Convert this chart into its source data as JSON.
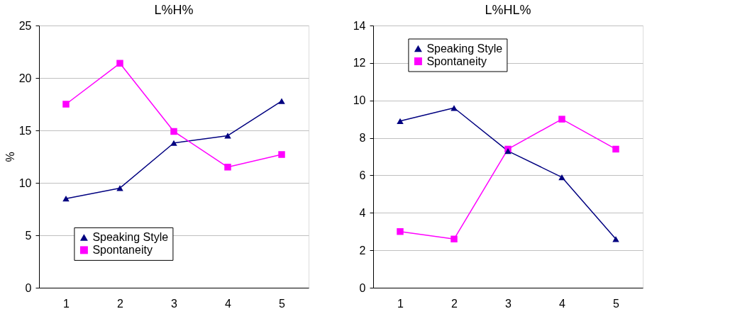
{
  "chart_data": [
    {
      "type": "line",
      "title": "L%H%",
      "ylabel": "%",
      "categories": [
        "1",
        "2",
        "3",
        "4",
        "5"
      ],
      "ylim": [
        0,
        25
      ],
      "yticks": [
        0,
        5,
        10,
        15,
        20,
        25
      ],
      "grid": "y",
      "legend": "bottom",
      "series": [
        {
          "name": "Speaking Style",
          "color": "#000080",
          "marker": "triangle",
          "values": [
            8.5,
            9.5,
            13.8,
            14.5,
            17.8
          ]
        },
        {
          "name": "Spontaneity",
          "color": "#ff00ff",
          "marker": "square",
          "values": [
            17.5,
            21.4,
            14.9,
            11.5,
            12.7
          ]
        }
      ]
    },
    {
      "type": "line",
      "title": "L%HL%",
      "categories": [
        "1",
        "2",
        "3",
        "4",
        "5"
      ],
      "ylim": [
        0,
        14
      ],
      "yticks": [
        0,
        2,
        4,
        6,
        8,
        10,
        12,
        14
      ],
      "grid": "y",
      "legend": "top",
      "series": [
        {
          "name": "Speaking Style",
          "color": "#000080",
          "marker": "triangle",
          "values": [
            8.9,
            9.6,
            7.3,
            5.9,
            2.6
          ]
        },
        {
          "name": "Spontaneity",
          "color": "#ff00ff",
          "marker": "square",
          "values": [
            3.0,
            2.6,
            7.4,
            9.0,
            7.4
          ]
        }
      ]
    }
  ]
}
